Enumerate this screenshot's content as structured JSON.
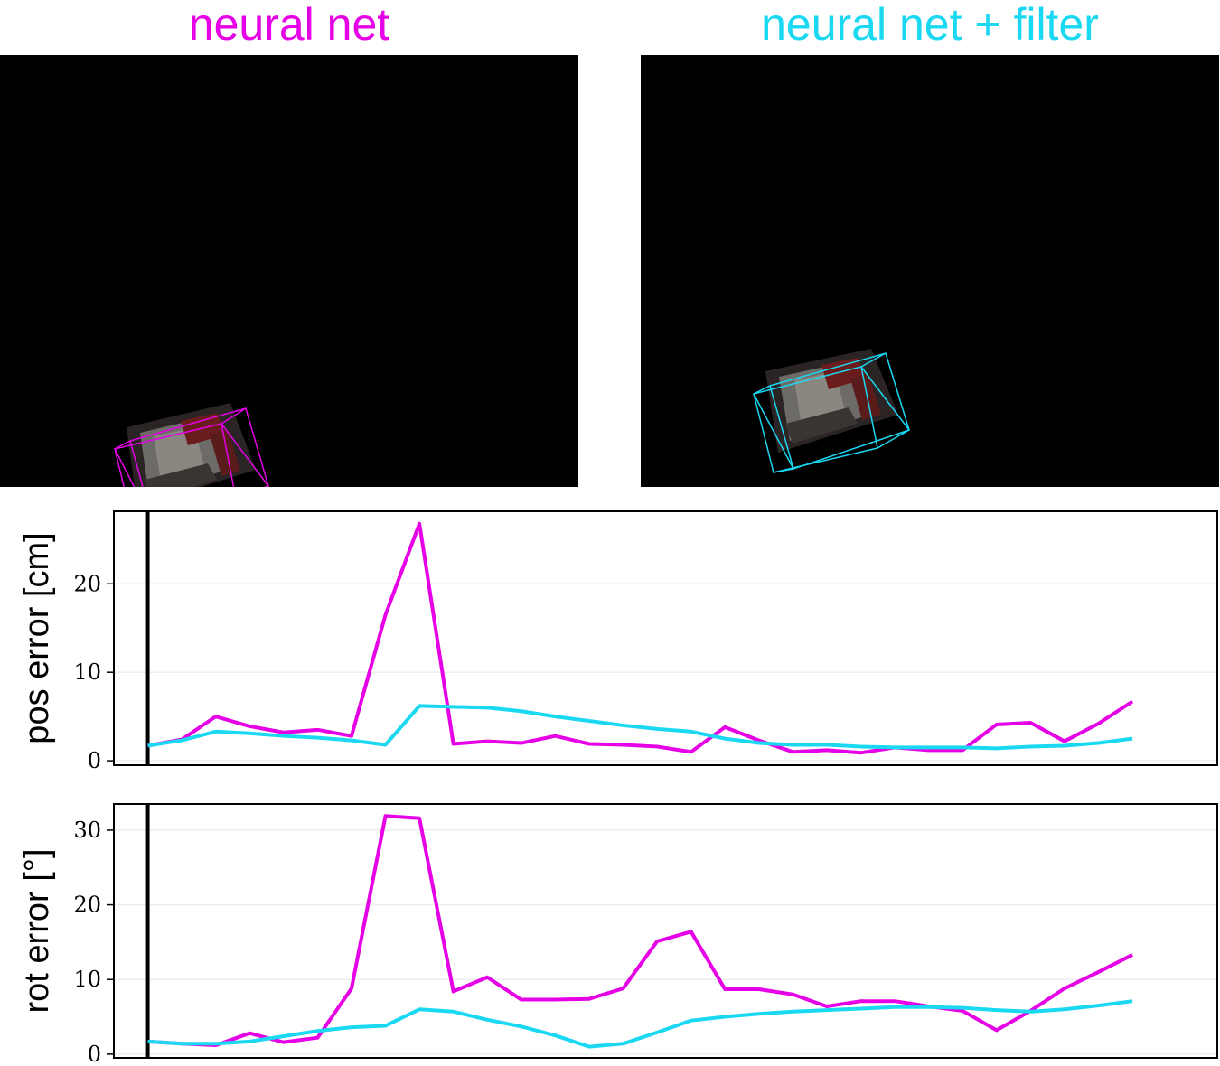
{
  "images": [
    {
      "title": "neural net",
      "color": "#e600e6"
    },
    {
      "title": "neural net + filter",
      "color": "#1ad8f2"
    }
  ],
  "chart_data": [
    {
      "type": "line",
      "ylabel": "pos error [cm]",
      "ylim": [
        -0.5,
        28.2
      ],
      "yticks": [
        0,
        10,
        20
      ],
      "xlim": [
        0,
        32.5
      ],
      "grid": true,
      "vline_x": 1.0,
      "series": [
        {
          "color": "#e600e6",
          "values": [
            1.7,
            2.4,
            5.0,
            3.9,
            3.2,
            3.5,
            2.8,
            16.5,
            26.8,
            1.9,
            2.2,
            2.0,
            2.8,
            1.9,
            1.8,
            1.6,
            1.0,
            3.8,
            2.3,
            1.0,
            1.2,
            0.9,
            1.5,
            1.2,
            1.2,
            4.1,
            4.3,
            2.2,
            4.2,
            6.7
          ]
        },
        {
          "color": "#1ad8f2",
          "values": [
            1.7,
            2.3,
            3.3,
            3.1,
            2.8,
            2.6,
            2.3,
            1.8,
            6.2,
            6.1,
            6.0,
            5.6,
            5.0,
            4.5,
            4.0,
            3.6,
            3.3,
            2.5,
            2.0,
            1.8,
            1.8,
            1.6,
            1.5,
            1.5,
            1.5,
            1.4,
            1.6,
            1.7,
            2.0,
            2.5
          ]
        }
      ]
    },
    {
      "type": "line",
      "ylabel": "rot error [°]",
      "ylim": [
        -0.5,
        33.5
      ],
      "yticks": [
        0,
        10,
        20,
        30
      ],
      "xlim": [
        0,
        32.5
      ],
      "grid": true,
      "vline_x": 1.0,
      "series": [
        {
          "color": "#e600e6",
          "values": [
            1.7,
            1.4,
            1.2,
            2.8,
            1.6,
            2.2,
            8.8,
            31.9,
            31.6,
            8.4,
            10.3,
            7.3,
            7.3,
            7.4,
            8.8,
            15.1,
            16.4,
            8.7,
            8.7,
            8.0,
            6.4,
            7.1,
            7.1,
            6.4,
            5.8,
            3.2,
            5.8,
            8.8,
            11.0,
            13.3
          ]
        },
        {
          "color": "#1ad8f2",
          "values": [
            1.7,
            1.4,
            1.4,
            1.7,
            2.4,
            3.1,
            3.6,
            3.8,
            6.0,
            5.7,
            4.6,
            3.7,
            2.5,
            1.0,
            1.4,
            2.9,
            4.5,
            5.0,
            5.4,
            5.7,
            5.9,
            6.1,
            6.3,
            6.3,
            6.2,
            5.9,
            5.7,
            6.0,
            6.5,
            7.1
          ]
        }
      ]
    }
  ]
}
